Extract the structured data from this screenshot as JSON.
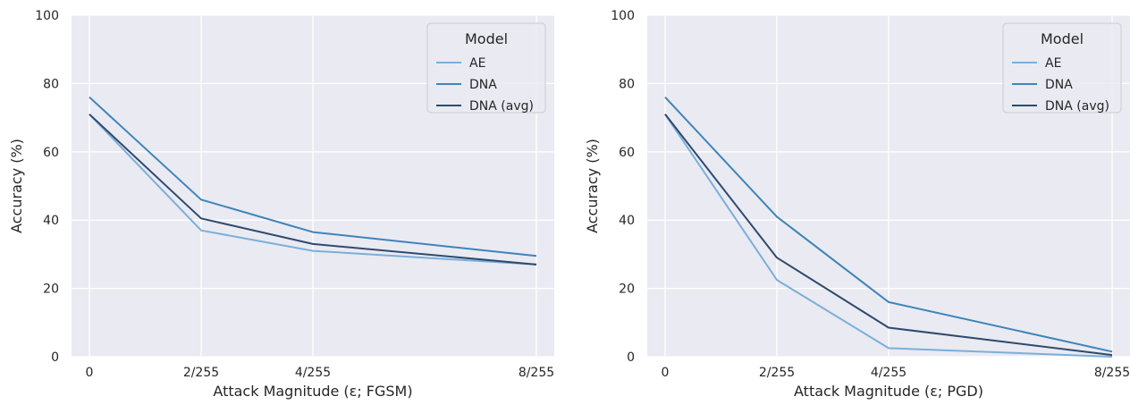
{
  "chart_data": [
    {
      "type": "line",
      "title": "",
      "xlabel": "Attack Magnitude (ε; FGSM)",
      "ylabel": "Accuracy (%)",
      "x": [
        0,
        2,
        4,
        8
      ],
      "xticklabels": [
        "0",
        "2/255",
        "4/255",
        "8/255"
      ],
      "yticks": [
        "0",
        "20",
        "40",
        "60",
        "80",
        "100"
      ],
      "ylim": [
        0,
        100
      ],
      "grid": true,
      "legend": {
        "title": "Model",
        "position": "top-right"
      },
      "series": [
        {
          "name": "AE",
          "color": "#7aafd9",
          "values": [
            71,
            37,
            31,
            27
          ]
        },
        {
          "name": "DNA",
          "color": "#3e84b8",
          "values": [
            76,
            46,
            36.5,
            29.5
          ]
        },
        {
          "name": "DNA (avg)",
          "color": "#2e4a6e",
          "values": [
            71,
            40.5,
            33,
            27
          ]
        }
      ]
    },
    {
      "type": "line",
      "title": "",
      "xlabel": "Attack Magnitude (ε; PGD)",
      "ylabel": "Accuracy (%)",
      "x": [
        0,
        2,
        4,
        8
      ],
      "xticklabels": [
        "0",
        "2/255",
        "4/255",
        "8/255"
      ],
      "yticks": [
        "0",
        "20",
        "40",
        "60",
        "80",
        "100"
      ],
      "ylim": [
        0,
        100
      ],
      "grid": true,
      "legend": {
        "title": "Model",
        "position": "top-right"
      },
      "series": [
        {
          "name": "AE",
          "color": "#7aafd9",
          "values": [
            71,
            22.5,
            2.5,
            0
          ]
        },
        {
          "name": "DNA",
          "color": "#3e84b8",
          "values": [
            76,
            41,
            16,
            1.5
          ]
        },
        {
          "name": "DNA (avg)",
          "color": "#2e4a6e",
          "values": [
            71,
            29,
            8.5,
            0.5
          ]
        }
      ]
    }
  ]
}
